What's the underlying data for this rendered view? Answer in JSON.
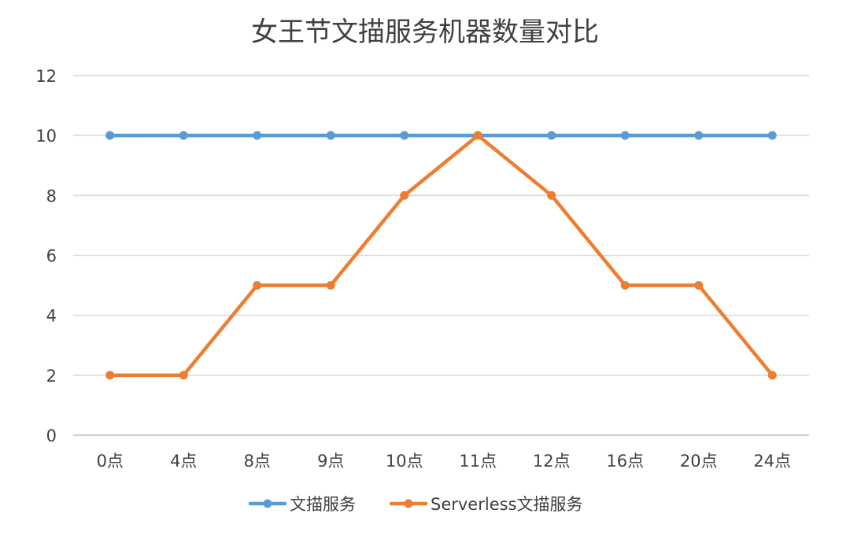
{
  "chart_data": {
    "type": "line",
    "title": "女王节文描服务机器数量对比",
    "xlabel": "",
    "ylabel": "",
    "categories": [
      "0点",
      "4点",
      "8点",
      "9点",
      "10点",
      "11点",
      "12点",
      "16点",
      "20点",
      "24点"
    ],
    "ylim": [
      0,
      12
    ],
    "yticks": [
      0,
      2,
      4,
      6,
      8,
      10,
      12
    ],
    "grid": true,
    "legend_position": "bottom",
    "series": [
      {
        "name": "文描服务",
        "color": "#5b9bd5",
        "values": [
          10,
          10,
          10,
          10,
          10,
          10,
          10,
          10,
          10,
          10
        ]
      },
      {
        "name": "Serverless文描服务",
        "color": "#ed7d31",
        "values": [
          2,
          2,
          5,
          5,
          8,
          10,
          8,
          5,
          5,
          2
        ]
      }
    ]
  }
}
